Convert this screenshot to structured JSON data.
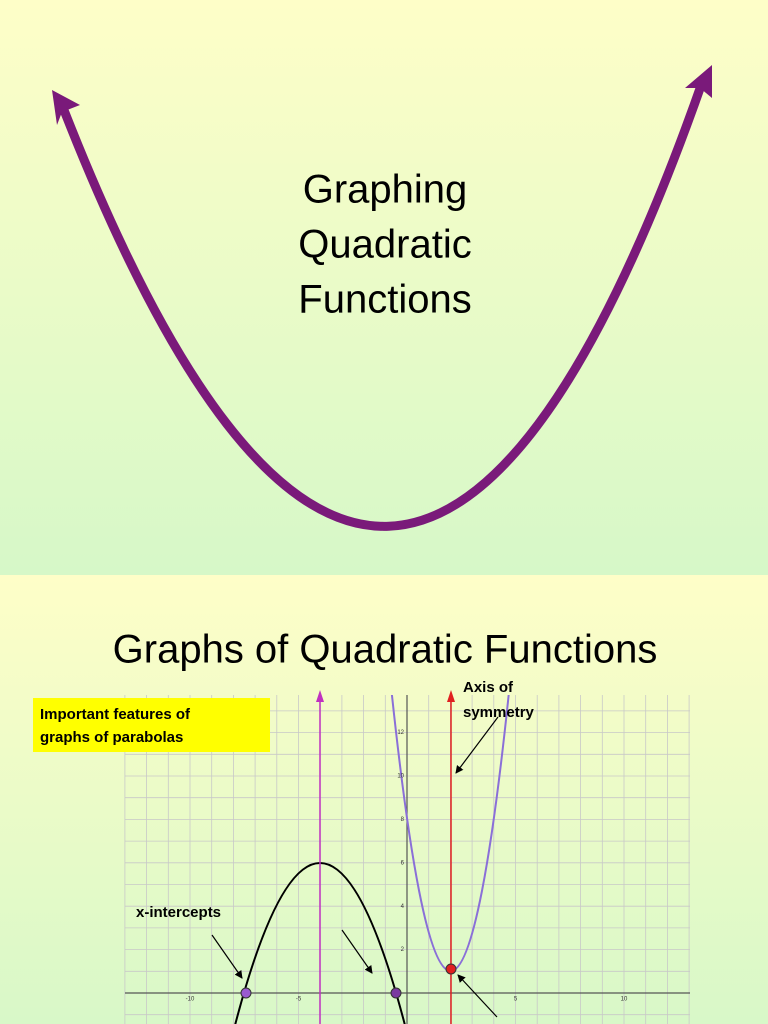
{
  "slides": [
    {
      "title_lines": [
        "Graphing",
        "Quadratic",
        "Functions"
      ]
    },
    {
      "title": "Graphs of Quadratic Functions",
      "callout_lines": [
        "Important features of",
        "graphs of parabolas"
      ],
      "axis_label_lines": [
        "Axis of",
        "symmetry"
      ],
      "intercepts_label": "x-intercepts",
      "x_tick_labels": [
        -10,
        -5,
        5,
        10
      ],
      "y_tick_labels": [
        2,
        4,
        6,
        8,
        10,
        12
      ]
    }
  ]
}
